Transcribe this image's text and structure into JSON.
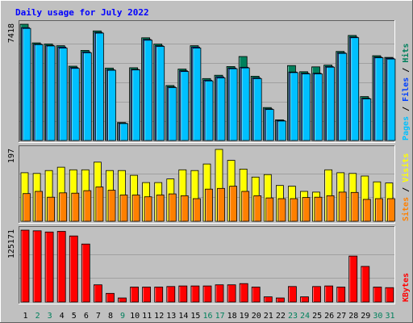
{
  "colors": {
    "background": "#c0c0c0",
    "panel": "#c0c0c0",
    "gridline": "#a0a0a0",
    "title": "#0000ff",
    "hits": "#00805c",
    "files": "#0040ff",
    "pages": "#00c0ff",
    "visits": "#ffff00",
    "sites": "#ff8000",
    "kbytes": "#ff0000",
    "weekend_day": "#00805c",
    "weekday_day": "#000000"
  },
  "chart_data": {
    "type": "bar",
    "title": "Daily usage for July 2022",
    "categories": [
      "1",
      "2",
      "3",
      "4",
      "5",
      "6",
      "7",
      "8",
      "9",
      "10",
      "11",
      "12",
      "13",
      "14",
      "15",
      "16",
      "17",
      "18",
      "19",
      "20",
      "21",
      "22",
      "23",
      "24",
      "25",
      "26",
      "27",
      "28",
      "29",
      "30",
      "31"
    ],
    "weekend_days": [
      "2",
      "3",
      "9",
      "16",
      "17",
      "23",
      "24",
      "30",
      "31"
    ],
    "panels": [
      {
        "id": "hits",
        "ymax_label": "7418",
        "ylim": [
          0,
          7418
        ],
        "right_label": [
          "Pages",
          " / ",
          "Files",
          " / ",
          "Hits"
        ],
        "right_label_colors": [
          "#00c0ff",
          "#000000",
          "#0040ff",
          "#000000",
          "#00805c"
        ],
        "series": [
          {
            "name": "Hits",
            "values": [
              7418,
              6230,
              6160,
              6050,
              4740,
              5750,
              6990,
              4620,
              1150,
              4640,
              6550,
              6150,
              3510,
              4560,
              6050,
              3950,
              4160,
              4720,
              5360,
              4100,
              2100,
              1320,
              4780,
              4390,
              4700,
              4810,
              5680,
              6700,
              2800,
              5410,
              5300
            ]
          },
          {
            "name": "Files",
            "values": [
              7200,
              6150,
              6070,
              5960,
              4650,
              5650,
              6900,
              4520,
              1100,
              4540,
              6450,
              6050,
              3420,
              4450,
              5960,
              3850,
              4060,
              4620,
              4670,
              4000,
              2020,
              1270,
              4370,
              4290,
              4290,
              4720,
              5600,
              6600,
              2700,
              5320,
              5250
            ]
          },
          {
            "name": "Pages",
            "values": [
              7150,
              6120,
              6030,
              5900,
              4600,
              5600,
              6850,
              4480,
              1080,
              4500,
              6400,
              6000,
              3380,
              4400,
              5900,
              3800,
              4000,
              4580,
              4630,
              3950,
              1980,
              1240,
              4330,
              4250,
              4250,
              4680,
              5560,
              6560,
              2660,
              5280,
              5200
            ]
          }
        ]
      },
      {
        "id": "visits",
        "ymax_label": "197",
        "ylim": [
          0,
          197
        ],
        "right_label": [
          "Sites",
          " / ",
          "Visits"
        ],
        "right_label_colors": [
          "#ff8000",
          "#000000",
          "#ffff00"
        ],
        "series": [
          {
            "name": "Visits",
            "values": [
              133,
              131,
              139,
              148,
              141,
              141,
              162,
              139,
              139,
              126,
              106,
              106,
              116,
              141,
              139,
              157,
              197,
              167,
              143,
              121,
              128,
              98,
              96,
              82,
              80,
              141,
              133,
              131,
              124,
              108,
              105
            ]
          },
          {
            "name": "Sites",
            "values": [
              76,
              82,
              66,
              78,
              77,
              84,
              94,
              85,
              72,
              72,
              67,
              72,
              75,
              70,
              62,
              88,
              90,
              96,
              82,
              70,
              64,
              62,
              62,
              65,
              66,
              70,
              80,
              79,
              60,
              62,
              62
            ]
          }
        ]
      },
      {
        "id": "kbytes",
        "ymax_label": "125171",
        "ylim": [
          0,
          125171
        ],
        "right_label": [
          "KBytes"
        ],
        "right_label_colors": [
          "#ff0000"
        ],
        "series": [
          {
            "name": "KBytes",
            "values": [
              125171,
              124000,
              122000,
              123000,
              115000,
              101000,
              30000,
              15000,
              7000,
              26000,
              26000,
              26000,
              27000,
              28000,
              28000,
              28000,
              30000,
              30000,
              32000,
              26000,
              9000,
              7000,
              27000,
              9000,
              27000,
              28000,
              26000,
              80000,
              62000,
              26000,
              25000
            ]
          }
        ]
      }
    ]
  }
}
